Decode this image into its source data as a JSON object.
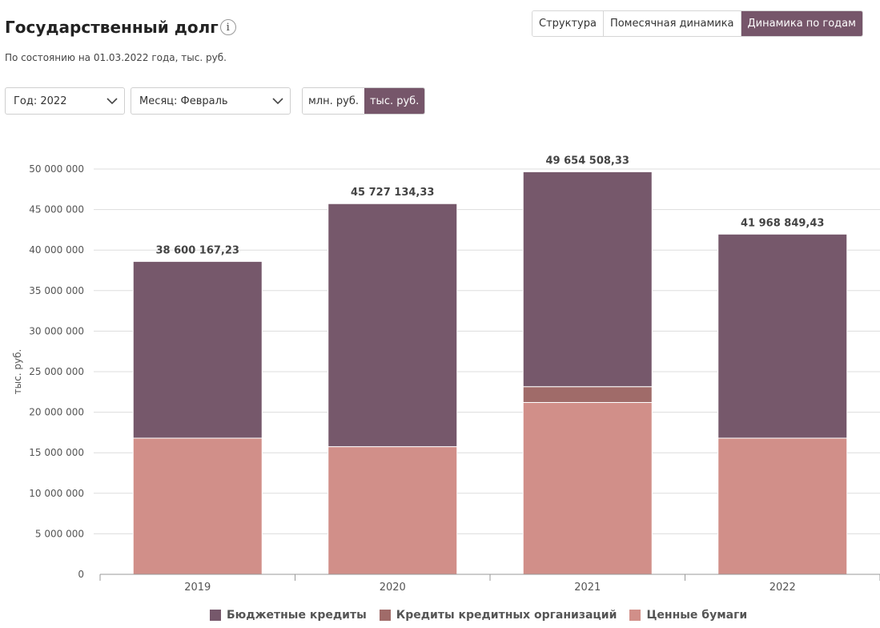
{
  "header": {
    "title": "Государственный долг",
    "info_icon": "i",
    "subtitle": "По состоянию на 01.03.2022 года, тыс. руб."
  },
  "view_tabs": [
    {
      "label": "Структура",
      "active": false
    },
    {
      "label": "Помесячная динамика",
      "active": false
    },
    {
      "label": "Динамика по годам",
      "active": true
    }
  ],
  "filters": {
    "year_label": "Год: 2022",
    "month_label": "Месяц: Февраль"
  },
  "units": [
    {
      "label": "млн. руб.",
      "active": false
    },
    {
      "label": "тыс. руб.",
      "active": true
    }
  ],
  "colors": {
    "accent": "#76566a",
    "budget_loans": "#76586b",
    "bank_loans": "#a06b69",
    "securities": "#d18f89"
  },
  "chart_data": {
    "type": "bar",
    "stacked": true,
    "title": "",
    "xlabel": "",
    "ylabel": "тыс. руб.",
    "ylim": [
      0,
      50000000
    ],
    "yticks": [
      0,
      5000000,
      10000000,
      15000000,
      20000000,
      25000000,
      30000000,
      35000000,
      40000000,
      45000000,
      50000000
    ],
    "ytick_labels": [
      "0",
      "5 000 000",
      "10 000 000",
      "15 000 000",
      "20 000 000",
      "25 000 000",
      "30 000 000",
      "35 000 000",
      "40 000 000",
      "45 000 000",
      "50 000 000"
    ],
    "grid": true,
    "categories": [
      "2019",
      "2020",
      "2021",
      "2022"
    ],
    "series": [
      {
        "name": "Ценные бумаги",
        "color": "#d18f89",
        "values": [
          16800000,
          15750000,
          21200000,
          16800000
        ]
      },
      {
        "name": "Кредиты кредитных организаций",
        "color": "#a06b69",
        "values": [
          0,
          0,
          1950000,
          0
        ]
      },
      {
        "name": "Бюджетные кредиты",
        "color": "#76586b",
        "values": [
          21800167.23,
          29977134.33,
          26504508.33,
          25168849.43
        ]
      }
    ],
    "totals": [
      38600167.23,
      45727134.33,
      49654508.33,
      41968849.43
    ],
    "total_labels": [
      "38 600 167,23",
      "45 727 134,33",
      "49 654 508,33",
      "41 968 849,43"
    ],
    "legend": [
      "Бюджетные кредиты",
      "Кредиты кредитных организаций",
      "Ценные бумаги"
    ],
    "legend_position": "bottom"
  }
}
